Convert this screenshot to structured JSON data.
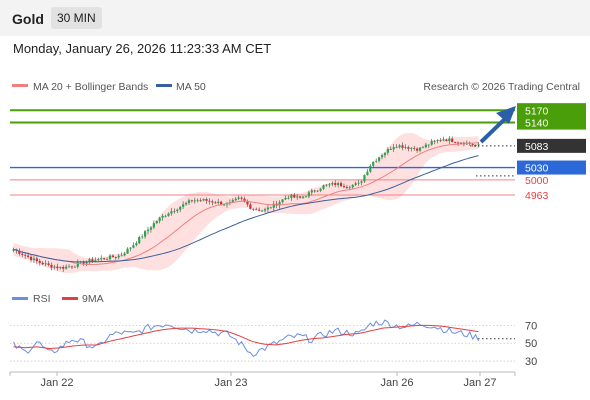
{
  "header": {
    "title": "Gold",
    "timeframe": "30 MIN"
  },
  "datetime": "Monday, January 26, 2026 11:23:33 AM CET",
  "legend": {
    "ma20": "MA 20 + Bollinger Bands",
    "ma50": "MA 50",
    "credit": "Research © 2026 Trading Central"
  },
  "rsi_legend": {
    "rsi": "RSI",
    "ma9": "9MA"
  },
  "colors": {
    "green": "#4a9e0a",
    "blue": "#2d68d8",
    "red": "#e84040",
    "dark": "#333333",
    "ma20": "#f08080",
    "ma50": "#3a5f9e",
    "band": "#ffd6d6",
    "up": "#26a64a",
    "down": "#d42c2c",
    "rsi": "#6a8ee0",
    "rsi_ma": "#e04040",
    "arrow": "#2a5fa8"
  },
  "chart_data": [
    {
      "type": "candlestick",
      "title": "Gold",
      "timeframe": "30 MIN",
      "x_labels": [
        "Jan 22",
        "Jan 23",
        "Jan 26",
        "Jan 27"
      ],
      "ylim": [
        4760,
        5200
      ],
      "series": [
        {
          "name": "MA 20 + Bollinger Bands"
        },
        {
          "name": "MA 50"
        }
      ],
      "levels": [
        {
          "value": 5170,
          "label": "5170",
          "kind": "resistance"
        },
        {
          "value": 5140,
          "label": "5140",
          "kind": "resistance"
        },
        {
          "value": 5083,
          "label": "5083",
          "kind": "last"
        },
        {
          "value": 5030,
          "label": "5030",
          "kind": "pivot"
        },
        {
          "value": 5000,
          "label": "5000",
          "kind": "support"
        },
        {
          "value": 4963,
          "label": "4963",
          "kind": "support"
        }
      ],
      "close_path": [
        4830,
        4815,
        4800,
        4790,
        4785,
        4790,
        4800,
        4805,
        4810,
        4815,
        4840,
        4870,
        4900,
        4920,
        4935,
        4950,
        4950,
        4945,
        4940,
        4955,
        4930,
        4925,
        4940,
        4960,
        4955,
        4970,
        4985,
        4990,
        4985,
        4990,
        5040,
        5065,
        5085,
        5080,
        5075,
        5090,
        5100,
        5095,
        5090,
        5083
      ]
    },
    {
      "type": "line",
      "title": "RSI",
      "ylim": [
        20,
        85
      ],
      "y_ticks": [
        30,
        50,
        70
      ],
      "series": [
        {
          "name": "RSI"
        },
        {
          "name": "9MA"
        }
      ],
      "rsi_path": [
        48,
        40,
        52,
        38,
        46,
        55,
        50,
        44,
        58,
        62,
        60,
        66,
        70,
        72,
        68,
        64,
        66,
        62,
        60,
        50,
        38,
        44,
        50,
        56,
        58,
        54,
        60,
        64,
        62,
        60,
        72,
        74,
        70,
        68,
        72,
        70,
        66,
        62,
        60,
        56
      ],
      "ma_path": [
        46,
        45,
        46,
        44,
        45,
        47,
        48,
        48,
        52,
        55,
        58,
        61,
        64,
        66,
        67,
        67,
        66,
        65,
        63,
        58,
        52,
        49,
        48,
        50,
        53,
        55,
        56,
        58,
        60,
        61,
        64,
        67,
        68,
        69,
        70,
        70,
        69,
        67,
        65,
        63
      ]
    }
  ]
}
